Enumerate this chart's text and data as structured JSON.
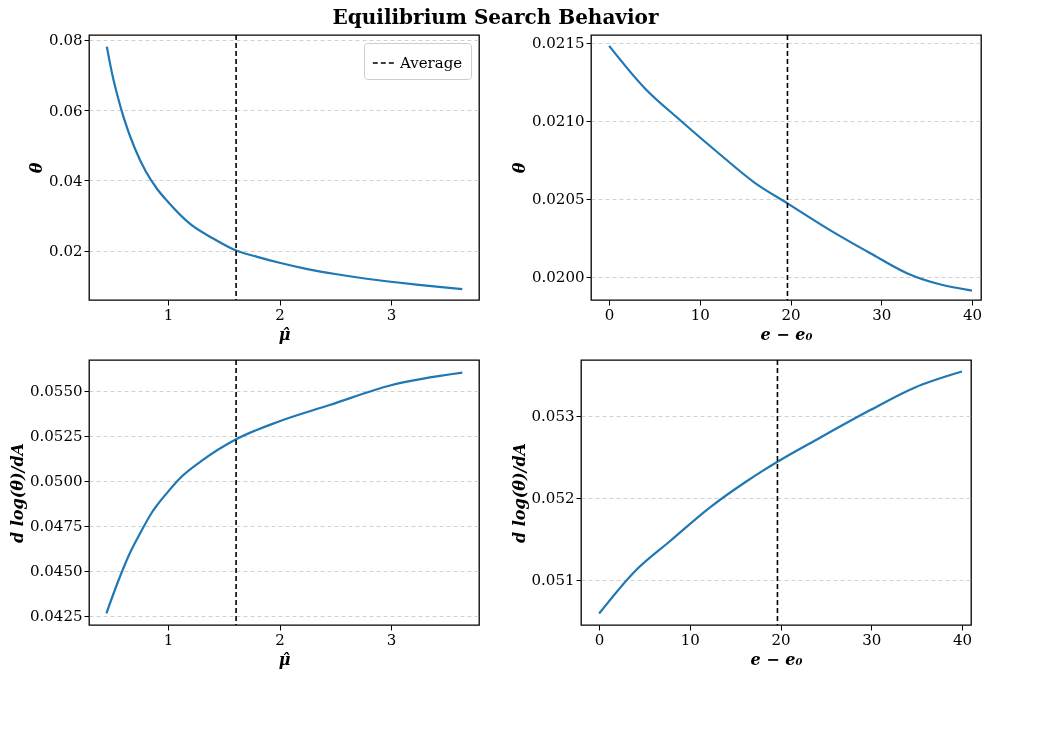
{
  "chart_data": [
    {
      "type": "line",
      "title": "Equilibrium Search Behavior",
      "xlabel": "μ̂",
      "ylabel": "θ",
      "x": [
        0.45,
        0.5,
        0.55,
        0.6,
        0.7,
        0.8,
        0.9,
        1.0,
        1.2,
        1.4,
        1.61,
        1.8,
        2.0,
        2.25,
        2.5,
        2.75,
        3.0,
        3.25,
        3.5,
        3.64
      ],
      "series": [
        {
          "color": "#1f77b4",
          "values": [
            0.0781,
            0.07,
            0.0636,
            0.058,
            0.0492,
            0.0425,
            0.0376,
            0.0338,
            0.0275,
            0.0235,
            0.02,
            0.0182,
            0.0165,
            0.0147,
            0.0133,
            0.0121,
            0.0111,
            0.0102,
            0.0094,
            0.009
          ]
        }
      ],
      "xlim": [
        0.29,
        3.79
      ],
      "xticks": [
        1,
        2,
        3
      ],
      "ylim": [
        0.0059,
        0.0814
      ],
      "yticks": [
        0.02,
        0.04,
        0.06,
        0.08
      ],
      "ref_lines": [
        {
          "axis": "x",
          "value": 1.61,
          "label": "Average",
          "color": "#000000",
          "line_style": "dashed"
        }
      ],
      "grid": "y",
      "legend": "top right",
      "line_style": "solid",
      "marker": "none"
    },
    {
      "type": "line",
      "xlabel": "e − e₀",
      "ylabel": "θ",
      "x": [
        0,
        3.9,
        7.9,
        12.3,
        16.1,
        19.66,
        24.3,
        28.8,
        32.9,
        40
      ],
      "series": [
        {
          "color": "#1f77b4",
          "values": [
            0.02148,
            0.02121,
            0.021,
            0.02078,
            0.0206,
            0.02047,
            0.0203,
            0.02015,
            0.02002,
            0.01991
          ]
        }
      ],
      "xlim": [
        -2,
        41
      ],
      "xticks": [
        0,
        10,
        20,
        30,
        40
      ],
      "ylim": [
        0.01985,
        0.02155
      ],
      "yticks": [
        {
          "value": 0.02,
          "label": "0.0200"
        },
        0.0205,
        {
          "value": 0.021,
          "label": "0.0210"
        },
        0.0215
      ],
      "ref_lines": [
        {
          "axis": "x",
          "value": 19.66,
          "color": "#000000",
          "line_style": "dashed"
        }
      ],
      "grid": "y",
      "line_style": "solid",
      "marker": "none"
    },
    {
      "type": "line",
      "xlabel": "μ̂",
      "ylabel": "d log(θ)/dA",
      "x": [
        0.446,
        0.55,
        0.65,
        0.75,
        0.85,
        1.0,
        1.1,
        1.3,
        1.61,
        2.0,
        2.45,
        3.0,
        3.64
      ],
      "series": [
        {
          "color": "#1f77b4",
          "values": [
            0.04265,
            0.0444,
            0.0459,
            0.0471,
            0.0482,
            0.0494,
            0.0501,
            0.0511,
            0.0523,
            0.0533,
            0.0542,
            0.0553,
            0.056
          ]
        }
      ],
      "xlim": [
        0.29,
        3.79
      ],
      "xticks": [
        1,
        2,
        3
      ],
      "ylim": [
        0.042,
        0.0567
      ],
      "yticks": [
        0.0425,
        {
          "value": 0.045,
          "label": "0.0450"
        },
        0.0475,
        {
          "value": 0.05,
          "label": "0.0500"
        },
        0.0525,
        {
          "value": 0.055,
          "label": "0.0550"
        }
      ],
      "ref_lines": [
        {
          "axis": "x",
          "value": 1.61,
          "color": "#000000",
          "line_style": "dashed"
        }
      ],
      "grid": "y",
      "line_style": "solid",
      "marker": "none"
    },
    {
      "type": "line",
      "xlabel": "e − e₀",
      "ylabel": "d log(θ)/dA",
      "x": [
        0,
        3.9,
        7.9,
        12.3,
        16.1,
        19.66,
        24.3,
        29.9,
        34.7,
        40
      ],
      "series": [
        {
          "color": "#1f77b4",
          "values": [
            0.05059,
            0.0511,
            0.05148,
            0.05189,
            0.05219,
            0.05244,
            0.05273,
            0.05307,
            0.05334,
            0.05354
          ]
        }
      ],
      "xlim": [
        -2,
        41
      ],
      "xticks": [
        0,
        10,
        20,
        30,
        40
      ],
      "ylim": [
        0.05045,
        0.05368
      ],
      "yticks": [
        0.051,
        0.052,
        0.053
      ],
      "ref_lines": [
        {
          "axis": "x",
          "value": 19.66,
          "color": "#000000",
          "line_style": "dashed"
        }
      ],
      "grid": "y",
      "line_style": "solid",
      "marker": "none"
    }
  ]
}
